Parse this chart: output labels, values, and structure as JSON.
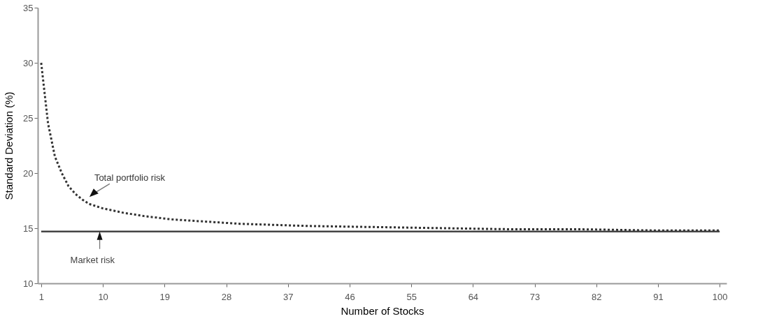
{
  "chart_data": {
    "type": "line",
    "xlabel": "Number of Stocks",
    "ylabel": "Standard Deviation (%)",
    "xlim": [
      0.5,
      101
    ],
    "xticks": [
      1,
      10,
      19,
      28,
      37,
      46,
      55,
      64,
      73,
      82,
      91,
      100
    ],
    "ylim": [
      10,
      35
    ],
    "yticks": [
      10,
      15,
      20,
      25,
      30,
      35
    ],
    "grid": false,
    "legend": false,
    "marker": "none",
    "series": [
      {
        "name": "Total portfolio risk",
        "color": "#333333",
        "line_style": "dotted",
        "x": [
          1,
          2,
          3,
          4,
          5,
          6,
          7,
          8,
          10,
          13,
          16,
          20,
          25,
          30,
          40,
          50,
          60,
          70,
          80,
          90,
          100
        ],
        "values": [
          30,
          24.5,
          21.5,
          20,
          18.8,
          18.1,
          17.6,
          17.2,
          16.8,
          16.4,
          16.1,
          15.8,
          15.6,
          15.4,
          15.2,
          15.1,
          15.0,
          14.9,
          14.9,
          14.8,
          14.8
        ]
      },
      {
        "name": "Market risk",
        "color": "#444444",
        "line_style": "solid",
        "x": [
          1,
          100
        ],
        "values": [
          14.7,
          14.7
        ]
      }
    ]
  }
}
